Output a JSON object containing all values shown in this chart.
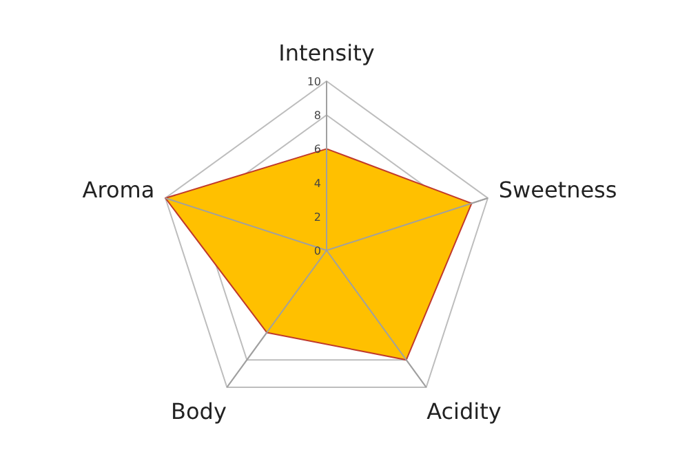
{
  "chart_data": {
    "type": "radar",
    "categories": [
      "Intensity",
      "Sweetness",
      "Acidity",
      "Body",
      "Aroma"
    ],
    "series": [
      {
        "color": "#ffc000",
        "values": [
          6,
          9,
          8,
          6,
          10
        ]
      }
    ],
    "ylim": [
      0,
      10
    ],
    "yticks": [
      0,
      2,
      4,
      6,
      8,
      10
    ],
    "grid": true
  }
}
